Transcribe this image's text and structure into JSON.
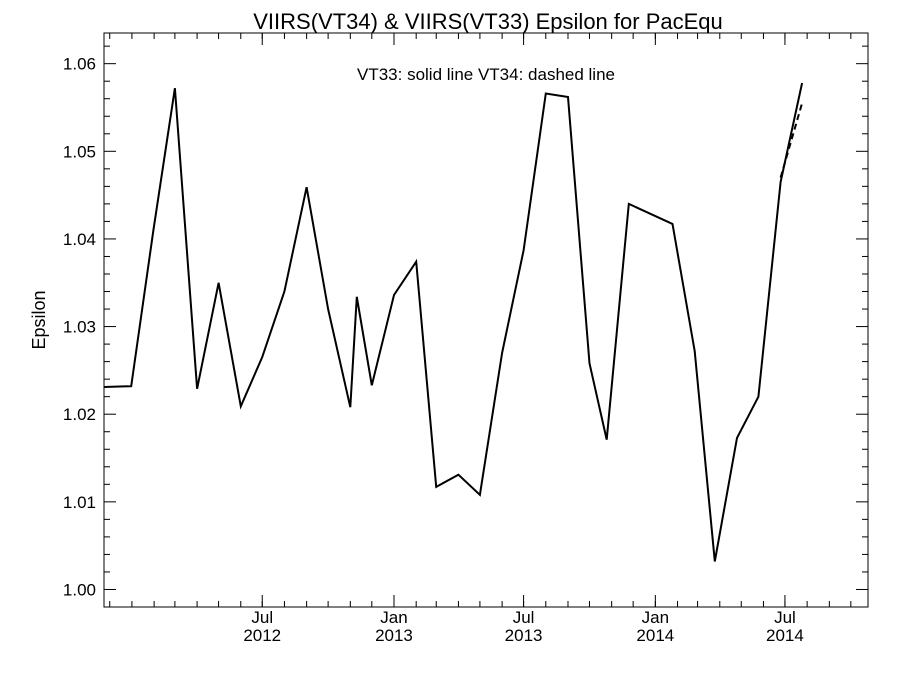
{
  "chart_data": {
    "type": "line",
    "title": "VIIRS(VT34) & VIIRS(VT33)  Epsilon for PacEqu",
    "xlabel": "",
    "ylabel": "Epsilon",
    "ylim": [
      0.998,
      1.0635
    ],
    "xlim": [
      "2011-11-23",
      "2014-10-25"
    ],
    "y_ticks": [
      {
        "value": 1.0,
        "label": "1.00"
      },
      {
        "value": 1.01,
        "label": "1.01"
      },
      {
        "value": 1.02,
        "label": "1.02"
      },
      {
        "value": 1.03,
        "label": "1.03"
      },
      {
        "value": 1.04,
        "label": "1.04"
      },
      {
        "value": 1.05,
        "label": "1.05"
      },
      {
        "value": 1.06,
        "label": "1.06"
      }
    ],
    "x_ticks": [
      {
        "date": "2012-07-01",
        "month": "Jul",
        "year": "2012"
      },
      {
        "date": "2013-01-01",
        "month": "Jan",
        "year": "2013"
      },
      {
        "date": "2013-07-01",
        "month": "Jul",
        "year": "2013"
      },
      {
        "date": "2014-01-01",
        "month": "Jan",
        "year": "2014"
      },
      {
        "date": "2014-07-01",
        "month": "Jul",
        "year": "2014"
      }
    ],
    "annotation": "VT33: solid line   VT34: dashed line",
    "grid": false,
    "series": [
      {
        "name": "VT33",
        "style": "solid",
        "color": "#000000",
        "points": [
          {
            "x": "2011-11-23",
            "y": 1.0231
          },
          {
            "x": "2011-12-31",
            "y": 1.0232
          },
          {
            "x": "2012-01-31",
            "y": 1.041
          },
          {
            "x": "2012-03-01",
            "y": 1.0572
          },
          {
            "x": "2012-04-01",
            "y": 1.0229
          },
          {
            "x": "2012-05-01",
            "y": 1.035
          },
          {
            "x": "2012-06-01",
            "y": 1.0209
          },
          {
            "x": "2012-07-01",
            "y": 1.0265
          },
          {
            "x": "2012-08-01",
            "y": 1.034
          },
          {
            "x": "2012-09-01",
            "y": 1.0459
          },
          {
            "x": "2012-10-01",
            "y": 1.032
          },
          {
            "x": "2012-11-01",
            "y": 1.0208
          },
          {
            "x": "2012-11-10",
            "y": 1.0334
          },
          {
            "x": "2012-12-01",
            "y": 1.0233
          },
          {
            "x": "2013-01-01",
            "y": 1.0336
          },
          {
            "x": "2013-02-01",
            "y": 1.0374
          },
          {
            "x": "2013-03-01",
            "y": 1.0117
          },
          {
            "x": "2013-04-01",
            "y": 1.0131
          },
          {
            "x": "2013-05-01",
            "y": 1.0108
          },
          {
            "x": "2013-06-01",
            "y": 1.027
          },
          {
            "x": "2013-07-01",
            "y": 1.0387
          },
          {
            "x": "2013-08-01",
            "y": 1.0566
          },
          {
            "x": "2013-09-01",
            "y": 1.0562
          },
          {
            "x": "2013-10-01",
            "y": 1.0258
          },
          {
            "x": "2013-10-25",
            "y": 1.0171
          },
          {
            "x": "2013-11-25",
            "y": 1.044
          },
          {
            "x": "2014-01-25",
            "y": 1.0417
          },
          {
            "x": "2014-02-25",
            "y": 1.0272
          },
          {
            "x": "2014-03-25",
            "y": 1.0032
          },
          {
            "x": "2014-04-25",
            "y": 1.0173
          },
          {
            "x": "2014-05-25",
            "y": 1.022
          },
          {
            "x": "2014-06-25",
            "y": 1.0465
          },
          {
            "x": "2014-07-25",
            "y": 1.0578
          }
        ]
      },
      {
        "name": "VT34",
        "style": "dashed",
        "color": "#000000",
        "points": [
          {
            "x": "2014-06-25",
            "y": 1.047
          },
          {
            "x": "2014-07-25",
            "y": 1.0555
          }
        ]
      }
    ]
  }
}
